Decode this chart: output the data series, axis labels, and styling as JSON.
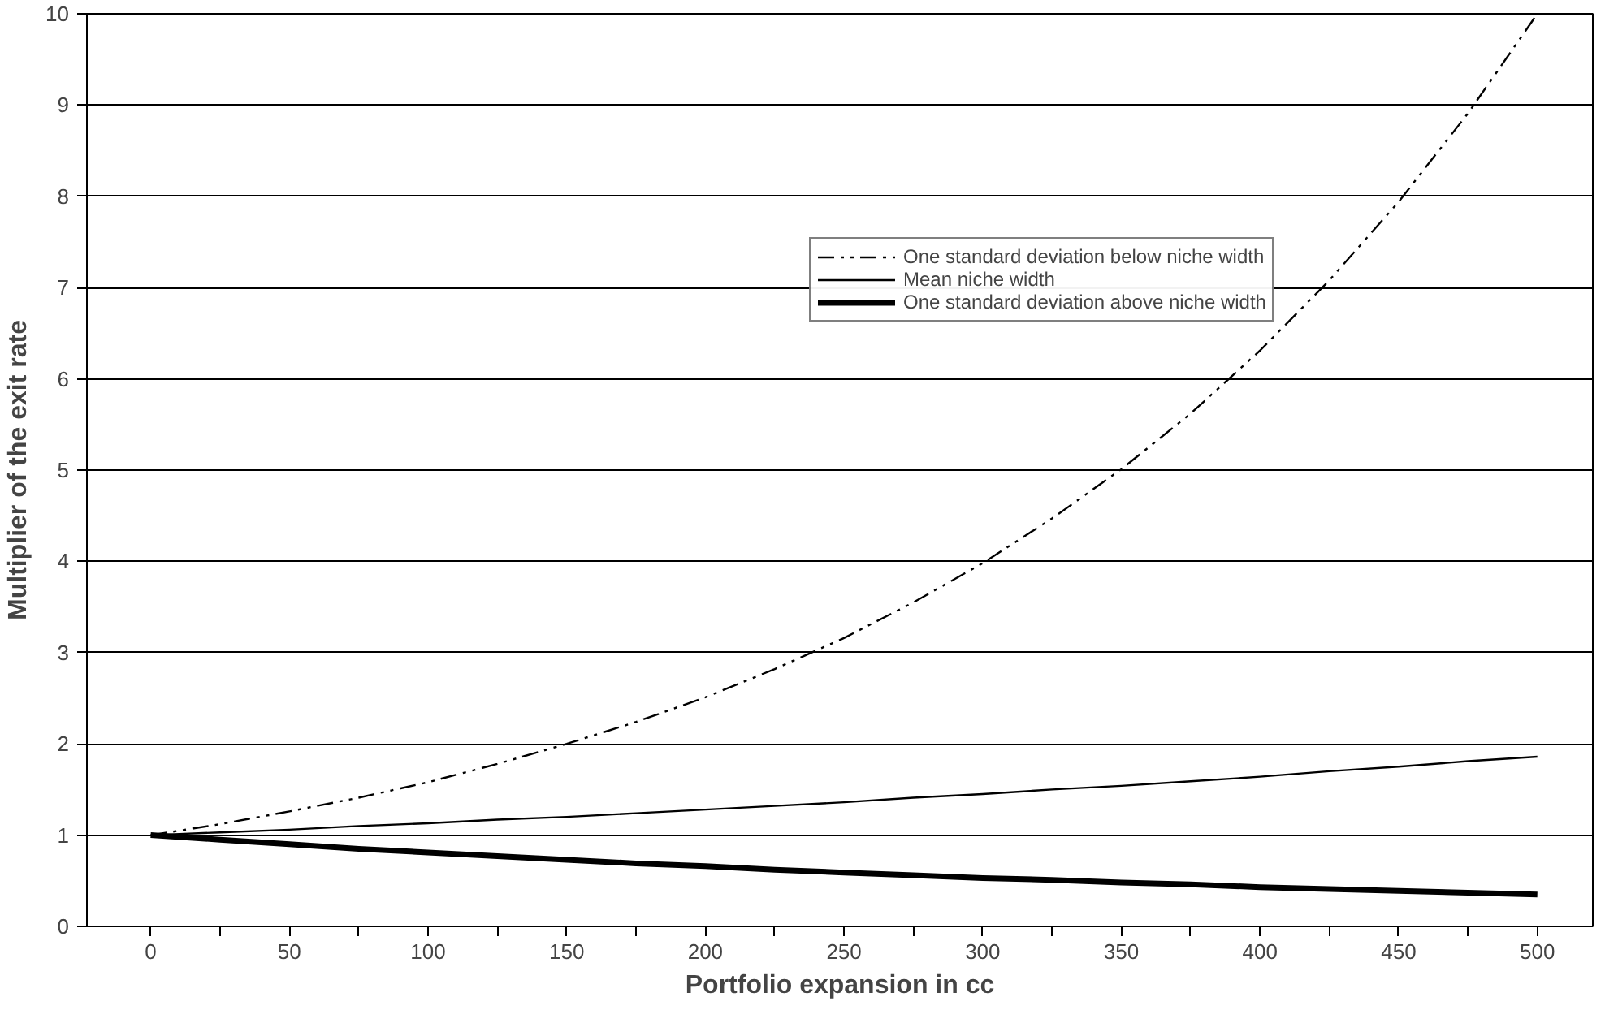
{
  "chart_data": {
    "type": "line",
    "xlabel": "Portfolio expansion in cc",
    "ylabel": "Multiplier of the exit rate",
    "x": [
      0,
      25,
      50,
      75,
      100,
      125,
      150,
      175,
      200,
      225,
      250,
      275,
      300,
      325,
      350,
      375,
      400,
      425,
      450,
      475,
      500
    ],
    "xlim": [
      -23,
      520
    ],
    "ylim": [
      0,
      10
    ],
    "xticks": [
      0,
      {
        "value": 25,
        "label": null
      },
      50,
      {
        "value": 75,
        "label": null
      },
      100,
      {
        "value": 125,
        "label": null
      },
      150,
      {
        "value": 175,
        "label": null
      },
      200,
      {
        "value": 225,
        "label": null
      },
      250,
      {
        "value": 275,
        "label": null
      },
      300,
      {
        "value": 325,
        "label": null
      },
      350,
      {
        "value": 375,
        "label": null
      },
      400,
      {
        "value": 425,
        "label": null
      },
      450,
      {
        "value": 475,
        "label": null
      },
      500
    ],
    "yticks": [
      0,
      1,
      2,
      3,
      4,
      5,
      6,
      7,
      8,
      9,
      10
    ],
    "grid": "y",
    "legend": "top right",
    "marker": "none",
    "series": [
      {
        "name": "One standard deviation below niche width",
        "color": "#000000",
        "line_style": "dashed",
        "values": [
          1.0,
          1.12,
          1.26,
          1.41,
          1.58,
          1.78,
          2.0,
          2.24,
          2.51,
          2.82,
          3.16,
          3.55,
          3.98,
          4.47,
          5.01,
          5.62,
          6.31,
          7.08,
          7.94,
          8.91,
          10.0
        ]
      },
      {
        "name": "Mean niche width",
        "color": "#000000",
        "line_style": "solid",
        "values": [
          1.0,
          1.03,
          1.06,
          1.1,
          1.13,
          1.17,
          1.2,
          1.24,
          1.28,
          1.32,
          1.36,
          1.41,
          1.45,
          1.5,
          1.54,
          1.59,
          1.64,
          1.7,
          1.75,
          1.81,
          1.86
        ]
      },
      {
        "name": "One standard deviation above niche width",
        "color": "#000000",
        "line_style": "solid",
        "values": [
          1.0,
          0.95,
          0.9,
          0.85,
          0.81,
          0.77,
          0.73,
          0.69,
          0.66,
          0.62,
          0.59,
          0.56,
          0.53,
          0.51,
          0.48,
          0.46,
          0.43,
          0.41,
          0.39,
          0.37,
          0.35
        ]
      }
    ]
  }
}
